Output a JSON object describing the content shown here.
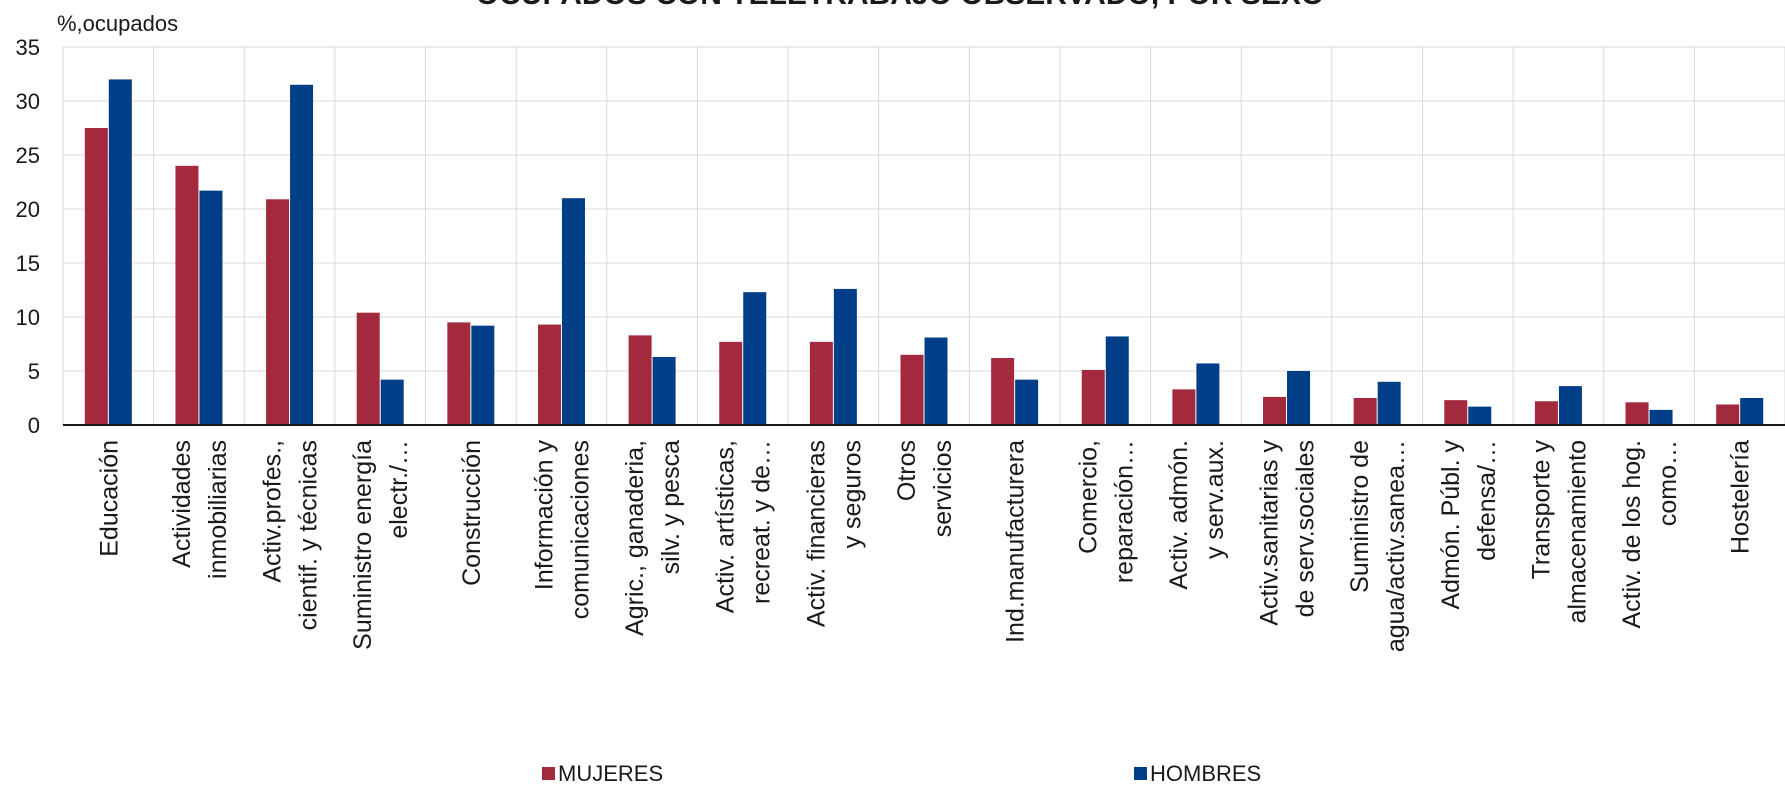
{
  "chart_data": {
    "type": "bar",
    "title": "OCUPADOS CON TELETRABAJO OBSERVADO, POR SEXO",
    "ylabel": "%,ocupados",
    "xlabel": "",
    "ylim": [
      0,
      35
    ],
    "yticks": [
      0,
      5,
      10,
      15,
      20,
      25,
      30,
      35
    ],
    "grid": true,
    "legend_position": "bottom",
    "categories": [
      [
        "Educación"
      ],
      [
        "Actividades",
        "inmobiliarias"
      ],
      [
        "Activ.profes.,",
        "cientif. y técnicas"
      ],
      [
        "Suministro energía",
        "electr./…"
      ],
      [
        "Construcción"
      ],
      [
        "Información y",
        "comunicaciones"
      ],
      [
        "Agric., ganaderia,",
        "silv. y pesca"
      ],
      [
        "Activ. artísticas,",
        "recreat. y de…"
      ],
      [
        "Activ. financieras",
        "y seguros"
      ],
      [
        "Otros",
        "servicios"
      ],
      [
        "Ind.manufacturera"
      ],
      [
        "Comercio,",
        "reparación…"
      ],
      [
        "Activ. admón.",
        "y serv.aux."
      ],
      [
        "Activ.sanitarias y",
        "de serv.sociales"
      ],
      [
        "Suministro de",
        "agua/activ.sanea…"
      ],
      [
        "Admón. Públ. y",
        "defensa/…"
      ],
      [
        "Transporte y",
        "almacenamiento"
      ],
      [
        "Activ. de los hog.",
        "como…"
      ],
      [
        "Hostelería"
      ]
    ],
    "series": [
      {
        "name": "MUJERES",
        "color": "#a3293d",
        "values": [
          27.5,
          24.0,
          20.9,
          10.4,
          9.5,
          9.3,
          8.3,
          7.7,
          7.7,
          6.5,
          6.2,
          5.1,
          3.3,
          2.6,
          2.5,
          2.3,
          2.2,
          2.1,
          1.9
        ]
      },
      {
        "name": "HOMBRES",
        "color": "#003f87",
        "values": [
          32.0,
          21.7,
          31.5,
          4.2,
          9.2,
          21.0,
          6.3,
          12.3,
          12.6,
          8.1,
          4.2,
          8.2,
          5.7,
          5.0,
          4.0,
          1.7,
          3.6,
          1.4,
          2.5
        ]
      }
    ]
  }
}
